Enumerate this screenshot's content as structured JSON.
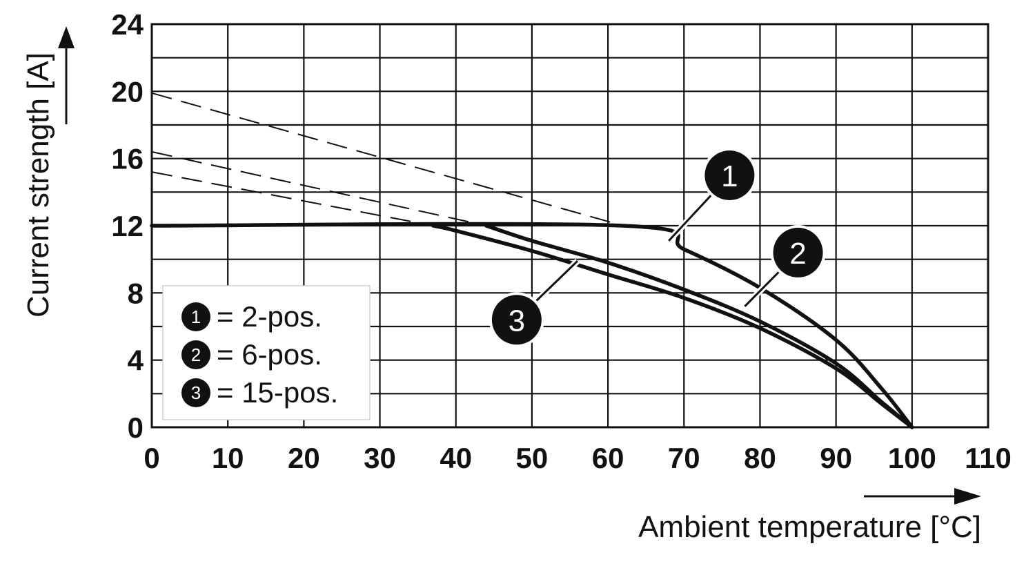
{
  "chart_data": {
    "type": "line",
    "xlabel": "Ambient temperature [°C]",
    "ylabel": "Current strength [A]",
    "xlim": [
      0,
      110
    ],
    "ylim": [
      0,
      24
    ],
    "x_ticks": [
      "0",
      "10",
      "20",
      "30",
      "40",
      "50",
      "60",
      "70",
      "80",
      "90",
      "100",
      "110"
    ],
    "y_ticks": [
      "0",
      "4",
      "8",
      "12",
      "16",
      "20",
      "24"
    ],
    "grid": true,
    "legend_placement": "bottom-left",
    "legend": [
      {
        "marker": "1",
        "text": "= 2-pos."
      },
      {
        "marker": "2",
        "text": "= 6-pos."
      },
      {
        "marker": "3",
        "text": "= 15-pos."
      }
    ],
    "series": [
      {
        "name": "1",
        "solid": [
          [
            0,
            12
          ],
          [
            62,
            12
          ],
          [
            70,
            10.6
          ],
          [
            80,
            8.3
          ],
          [
            90,
            5.2
          ],
          [
            96,
            2.3
          ],
          [
            100,
            0
          ]
        ],
        "dashed": [
          [
            0,
            19.9
          ],
          [
            62,
            12
          ]
        ]
      },
      {
        "name": "2",
        "solid": [
          [
            44,
            12
          ],
          [
            50,
            11.1
          ],
          [
            60,
            9.8
          ],
          [
            70,
            8.2
          ],
          [
            80,
            6.3
          ],
          [
            90,
            3.8
          ],
          [
            96,
            1.5
          ],
          [
            100,
            0
          ]
        ],
        "dashed": [
          [
            0,
            16.4
          ],
          [
            44,
            12
          ]
        ]
      },
      {
        "name": "3",
        "solid": [
          [
            37,
            12
          ],
          [
            40,
            11.7
          ],
          [
            50,
            10.5
          ],
          [
            60,
            9.1
          ],
          [
            70,
            7.7
          ],
          [
            80,
            5.9
          ],
          [
            90,
            3.5
          ],
          [
            96,
            1.4
          ],
          [
            100,
            0
          ]
        ],
        "dashed": [
          [
            0,
            15.2
          ],
          [
            37,
            12
          ]
        ]
      }
    ],
    "callouts": [
      {
        "label": "1",
        "x": 76,
        "y": 15,
        "target": [
          68,
          11.1
        ]
      },
      {
        "label": "2",
        "x": 85,
        "y": 10.4,
        "target": [
          78,
          7.2
        ]
      },
      {
        "label": "3",
        "x": 48,
        "y": 6.4,
        "target": [
          56,
          9.9
        ]
      }
    ]
  }
}
